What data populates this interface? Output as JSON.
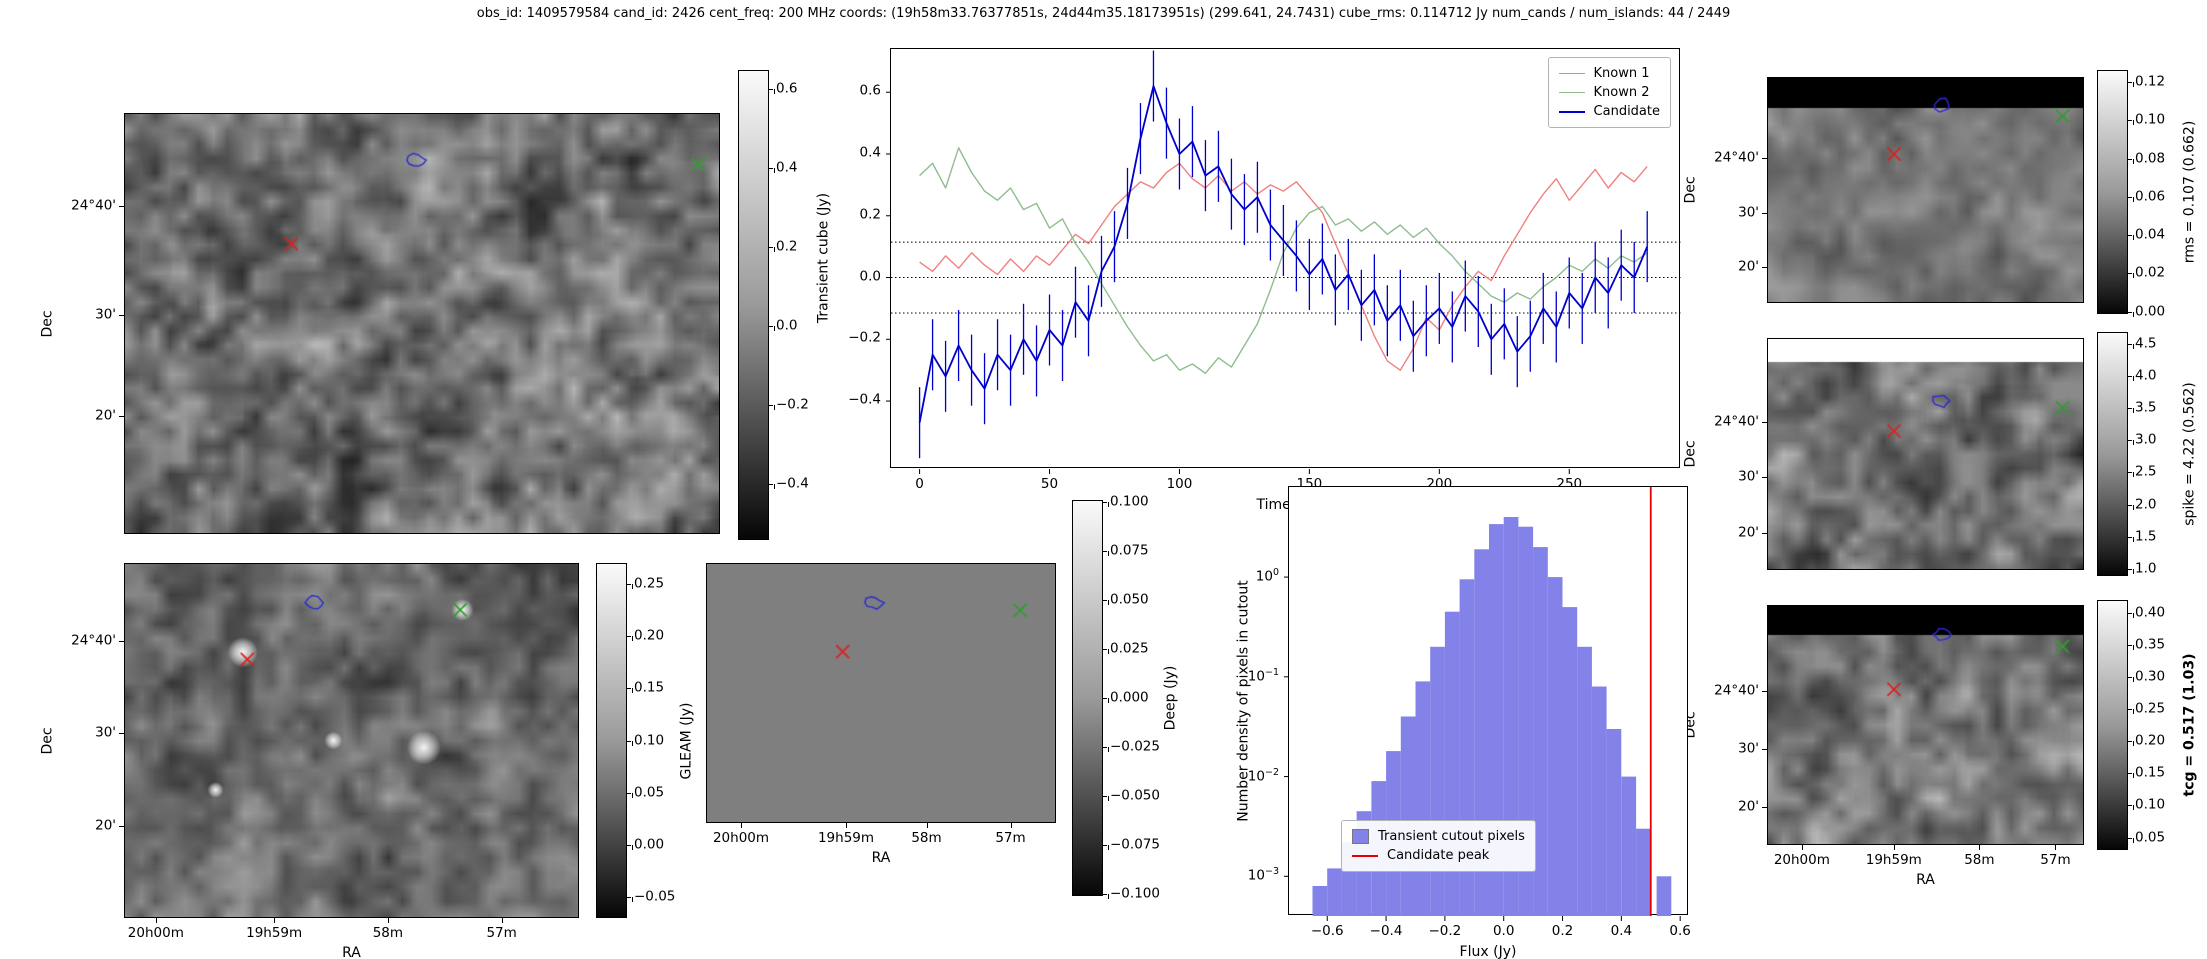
{
  "title": "obs_id: 1409579584 cand_id: 2426 cent_freq: 200 MHz coords: (19h58m33.76377851s, 24d44m35.18173951s) (299.641, 24.7431) cube_rms: 0.114712 Jy num_cands / num_islands: 44 / 2449",
  "colors": {
    "known1": "#f08080",
    "known2": "#8fbc8f",
    "candidate": "#0000cd",
    "hist_bar": "#8282e8",
    "peak_line": "#e60000",
    "marker_red": "#dd2020",
    "marker_green": "#2ca02c",
    "marker_blue": "#2b2bd0",
    "flat_gray": "#7f7f7f"
  },
  "axis": {
    "dec_label": "Dec",
    "ra_label": "RA",
    "dec_ticks": [
      "24°40'",
      "30'",
      "20'"
    ],
    "ra_ticks": [
      "20h00m",
      "19h59m",
      "58m",
      "57m"
    ]
  },
  "image_panels": [
    {
      "id": "transient",
      "name": "transient-cube-cutout",
      "markers": {
        "red_x": [
          0.28,
          0.31
        ],
        "blue_contour": [
          0.49,
          0.11
        ],
        "green_x": [
          0.965,
          0.12
        ]
      },
      "colorbar": {
        "ticks": [
          "0.6",
          "0.4",
          "0.2",
          "0.0",
          "−0.2",
          "−0.4"
        ],
        "label": ""
      }
    },
    {
      "id": "gleam",
      "name": "gleam-cutout",
      "markers": {
        "red_x": [
          0.27,
          0.27
        ],
        "blue_contour": [
          0.42,
          0.11
        ],
        "green_x": [
          0.74,
          0.13
        ]
      },
      "colorbar": {
        "ticks": [
          "0.25",
          "0.20",
          "0.15",
          "0.10",
          "0.05",
          "0.00",
          "−0.05"
        ],
        "label": "GLEAM (Jy)"
      }
    },
    {
      "id": "deep",
      "name": "deep-cutout",
      "markers": {
        "red_x": [
          0.39,
          0.34
        ],
        "blue_contour": [
          0.48,
          0.15
        ],
        "green_x": [
          0.9,
          0.18
        ]
      },
      "colorbar": {
        "ticks": [
          "0.100",
          "0.075",
          "0.050",
          "0.025",
          "0.000",
          "−0.025",
          "−0.050",
          "−0.075",
          "−0.100"
        ],
        "label": "Deep (Jy)"
      }
    },
    {
      "id": "rms",
      "name": "rms-map",
      "markers": {
        "red_x": [
          0.4,
          0.34
        ],
        "blue_contour": [
          0.555,
          0.12
        ],
        "green_x": [
          0.935,
          0.17
        ]
      },
      "colorbar": {
        "ticks": [
          "0.12",
          "0.10",
          "0.08",
          "0.06",
          "0.04",
          "0.02",
          "0.00"
        ],
        "label": "rms = 0.107 (0.662)"
      }
    },
    {
      "id": "spike",
      "name": "spike-map",
      "markers": {
        "red_x": [
          0.4,
          0.4
        ],
        "blue_contour": [
          0.55,
          0.27
        ],
        "green_x": [
          0.935,
          0.3
        ]
      },
      "colorbar": {
        "ticks": [
          "4.5",
          "4.0",
          "3.5",
          "3.0",
          "2.5",
          "2.0",
          "1.5",
          "1.0"
        ],
        "label": "spike = 4.22 (0.562)"
      }
    },
    {
      "id": "tcg",
      "name": "tcg-map",
      "markers": {
        "red_x": [
          0.4,
          0.35
        ],
        "blue_contour": [
          0.55,
          0.12
        ],
        "green_x": [
          0.935,
          0.17
        ]
      },
      "colorbar": {
        "ticks": [
          "0.40",
          "0.35",
          "0.30",
          "0.25",
          "0.20",
          "0.15",
          "0.10",
          "0.05"
        ],
        "label": "tcg = 0.517 (1.03)",
        "bold": true
      }
    }
  ],
  "chart_data": [
    {
      "type": "line",
      "name": "lightcurve",
      "title": "",
      "xlabel": "Time (s)",
      "ylabel": "Transient cube (Jy)",
      "xlim": [
        -11,
        293
      ],
      "ylim": [
        -0.62,
        0.74
      ],
      "xticks": [
        0,
        50,
        100,
        150,
        200,
        250
      ],
      "xtick_labels": [
        "0",
        "50",
        "100",
        "150",
        "200",
        "250"
      ],
      "yticks": [
        -0.4,
        -0.2,
        0.0,
        0.2,
        0.4,
        0.6
      ],
      "ytick_labels": [
        "−0.4",
        "−0.2",
        "0.0",
        "0.2",
        "0.4",
        "0.6"
      ],
      "hlines": [
        0.114712,
        0.0,
        -0.114712
      ],
      "grid": false,
      "legend_position": "upper right",
      "x": [
        0,
        5,
        10,
        15,
        20,
        25,
        30,
        35,
        40,
        45,
        50,
        55,
        60,
        65,
        70,
        75,
        80,
        85,
        90,
        95,
        100,
        105,
        110,
        115,
        120,
        125,
        130,
        135,
        140,
        145,
        150,
        155,
        160,
        165,
        170,
        175,
        180,
        185,
        190,
        195,
        200,
        205,
        210,
        215,
        220,
        225,
        230,
        235,
        240,
        245,
        250,
        255,
        260,
        265,
        270,
        275,
        280
      ],
      "series": [
        {
          "name": "Known 1",
          "color": "#f08080",
          "values": [
            0.05,
            0.02,
            0.07,
            0.03,
            0.08,
            0.04,
            0.01,
            0.06,
            0.02,
            0.07,
            0.04,
            0.09,
            0.14,
            0.11,
            0.17,
            0.23,
            0.27,
            0.31,
            0.29,
            0.34,
            0.37,
            0.32,
            0.29,
            0.33,
            0.28,
            0.31,
            0.27,
            0.3,
            0.28,
            0.31,
            0.26,
            0.21,
            0.11,
            0.01,
            -0.09,
            -0.19,
            -0.27,
            -0.3,
            -0.23,
            -0.13,
            -0.17,
            -0.09,
            -0.03,
            0.02,
            -0.01,
            0.07,
            0.14,
            0.21,
            0.27,
            0.32,
            0.25,
            0.3,
            0.35,
            0.29,
            0.34,
            0.31,
            0.36
          ]
        },
        {
          "name": "Known 2",
          "color": "#8fbc8f",
          "values": [
            0.33,
            0.37,
            0.29,
            0.42,
            0.34,
            0.28,
            0.25,
            0.29,
            0.22,
            0.24,
            0.16,
            0.19,
            0.11,
            0.05,
            -0.02,
            -0.09,
            -0.16,
            -0.22,
            -0.27,
            -0.25,
            -0.3,
            -0.28,
            -0.31,
            -0.26,
            -0.29,
            -0.22,
            -0.15,
            -0.04,
            0.08,
            0.16,
            0.21,
            0.23,
            0.17,
            0.19,
            0.15,
            0.18,
            0.14,
            0.17,
            0.13,
            0.16,
            0.11,
            0.07,
            0.02,
            -0.02,
            -0.06,
            -0.08,
            -0.05,
            -0.07,
            -0.03,
            0.0,
            0.04,
            0.02,
            0.06,
            0.03,
            0.07,
            0.05,
            0.08
          ]
        },
        {
          "name": "Candidate",
          "color": "#0000cd",
          "errors": 0.115,
          "values": [
            -0.47,
            -0.25,
            -0.32,
            -0.22,
            -0.3,
            -0.36,
            -0.25,
            -0.3,
            -0.2,
            -0.27,
            -0.17,
            -0.22,
            -0.08,
            -0.14,
            0.02,
            0.1,
            0.24,
            0.45,
            0.62,
            0.5,
            0.4,
            0.44,
            0.33,
            0.36,
            0.27,
            0.22,
            0.26,
            0.17,
            0.12,
            0.07,
            0.01,
            0.06,
            -0.04,
            0.01,
            -0.09,
            -0.04,
            -0.14,
            -0.09,
            -0.19,
            -0.14,
            -0.1,
            -0.16,
            -0.06,
            -0.11,
            -0.2,
            -0.15,
            -0.24,
            -0.19,
            -0.1,
            -0.16,
            -0.05,
            -0.1,
            0.0,
            -0.05,
            0.04,
            0.0,
            0.1
          ]
        }
      ]
    },
    {
      "type": "bar",
      "name": "flux-histogram",
      "title": "",
      "xlabel": "Flux (Jy)",
      "ylabel": "Number density of pixels in cutout",
      "yscale": "log",
      "xlim": [
        -0.73,
        0.63
      ],
      "ylim": [
        0.0004,
        8
      ],
      "xticks": [
        -0.6,
        -0.4,
        -0.2,
        0.0,
        0.2,
        0.4,
        0.6
      ],
      "xtick_labels": [
        "−0.6",
        "−0.4",
        "−0.2",
        "0.0",
        "0.2",
        "0.4",
        "0.6"
      ],
      "yticks_log": [
        0,
        -1,
        -2,
        -3
      ],
      "bin_width": 0.05,
      "bin_centers": [
        -0.625,
        -0.575,
        -0.525,
        -0.475,
        -0.425,
        -0.375,
        -0.325,
        -0.275,
        -0.225,
        -0.175,
        -0.125,
        -0.075,
        -0.025,
        0.025,
        0.075,
        0.125,
        0.175,
        0.225,
        0.275,
        0.325,
        0.375,
        0.425,
        0.475,
        0.545
      ],
      "values": [
        0.0008,
        0.0012,
        0.0022,
        0.0045,
        0.009,
        0.018,
        0.04,
        0.09,
        0.2,
        0.45,
        0.95,
        1.9,
        3.4,
        4.0,
        3.2,
        2.0,
        1.0,
        0.5,
        0.2,
        0.08,
        0.03,
        0.01,
        0.003,
        0.001
      ],
      "bar_color": "#8282e8",
      "vline": {
        "x": 0.5,
        "color": "#e60000"
      },
      "legend": [
        "Transient cutout pixels",
        "Candidate peak"
      ],
      "legend_position": "lower center-left"
    }
  ]
}
